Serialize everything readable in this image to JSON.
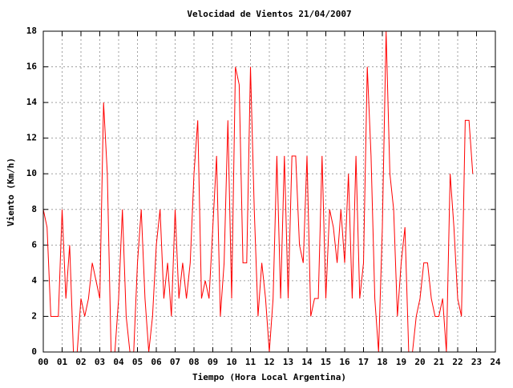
{
  "chart_data": {
    "type": "line",
    "title": "Velocidad de Vientos 21/04/2007",
    "xlabel": "Tiempo (Hora Local Argentina)",
    "ylabel": "Viento (Km/h)",
    "grid": true,
    "xlim": [
      0,
      24
    ],
    "ylim": [
      0,
      18
    ],
    "yticks": [
      0,
      2,
      4,
      6,
      8,
      10,
      12,
      14,
      16,
      18
    ],
    "xticks": [
      {
        "value": 0,
        "label": "00"
      },
      {
        "value": 1,
        "label": "01"
      },
      {
        "value": 2,
        "label": "02"
      },
      {
        "value": 3,
        "label": "03"
      },
      {
        "value": 4,
        "label": "04"
      },
      {
        "value": 5,
        "label": "05"
      },
      {
        "value": 6,
        "label": "06"
      },
      {
        "value": 7,
        "label": "07"
      },
      {
        "value": 8,
        "label": "08"
      },
      {
        "value": 9,
        "label": "09"
      },
      10,
      11,
      12,
      13,
      14,
      15,
      16,
      17,
      18,
      19,
      20,
      21,
      22,
      23,
      24
    ],
    "x": [
      0,
      0.2,
      0.4,
      0.6,
      0.8,
      1,
      1.2,
      1.4,
      1.6,
      1.8,
      2,
      2.2,
      2.4,
      2.6,
      2.8,
      3,
      3.2,
      3.4,
      3.6,
      3.8,
      4,
      4.2,
      4.4,
      4.6,
      4.8,
      5,
      5.2,
      5.4,
      5.6,
      5.8,
      6,
      6.2,
      6.4,
      6.6,
      6.8,
      7,
      7.2,
      7.4,
      7.6,
      7.8,
      8,
      8.2,
      8.4,
      8.6,
      8.8,
      9,
      9.2,
      9.4,
      9.6,
      9.8,
      10,
      10.2,
      10.4,
      10.6,
      10.8,
      11,
      11.2,
      11.4,
      11.6,
      11.8,
      12,
      12.2,
      12.4,
      12.6,
      12.8,
      13,
      13.2,
      13.4,
      13.6,
      13.8,
      14,
      14.2,
      14.4,
      14.6,
      14.8,
      15,
      15.2,
      15.4,
      15.6,
      15.8,
      16,
      16.2,
      16.4,
      16.6,
      16.8,
      17,
      17.2,
      17.4,
      17.6,
      17.8,
      18,
      18.2,
      18.4,
      18.6,
      18.8,
      19,
      19.2,
      19.4,
      19.6,
      19.8,
      20,
      20.2,
      20.4,
      20.6,
      20.8,
      21,
      21.2,
      21.4,
      21.6,
      21.8,
      22,
      22.2,
      22.4,
      22.6,
      22.8
    ],
    "series": [
      {
        "color": "#ff0000",
        "values": [
          8,
          7,
          2,
          2,
          2,
          8,
          3,
          6,
          0,
          0,
          3,
          2,
          3,
          5,
          4,
          3,
          14,
          10,
          0,
          0,
          3,
          8,
          2,
          0,
          0,
          5,
          8,
          3,
          0,
          2,
          6,
          8,
          3,
          5,
          2,
          8,
          3,
          5,
          3,
          5,
          10,
          13,
          3,
          4,
          3,
          7,
          11,
          2,
          5,
          13,
          3,
          16,
          15,
          5,
          5,
          16,
          8,
          2,
          5,
          3,
          0,
          3,
          11,
          3,
          11,
          3,
          11,
          11,
          6,
          5,
          11,
          2,
          3,
          3,
          11,
          3,
          8,
          7,
          5,
          8,
          5,
          10,
          3,
          11,
          3,
          5,
          16,
          11,
          3,
          0,
          7,
          18,
          10,
          8,
          2,
          5,
          7,
          0,
          0,
          2,
          3,
          5,
          5,
          3,
          2,
          2,
          3,
          0,
          10,
          7,
          3,
          2,
          13,
          13,
          10
        ]
      }
    ]
  }
}
